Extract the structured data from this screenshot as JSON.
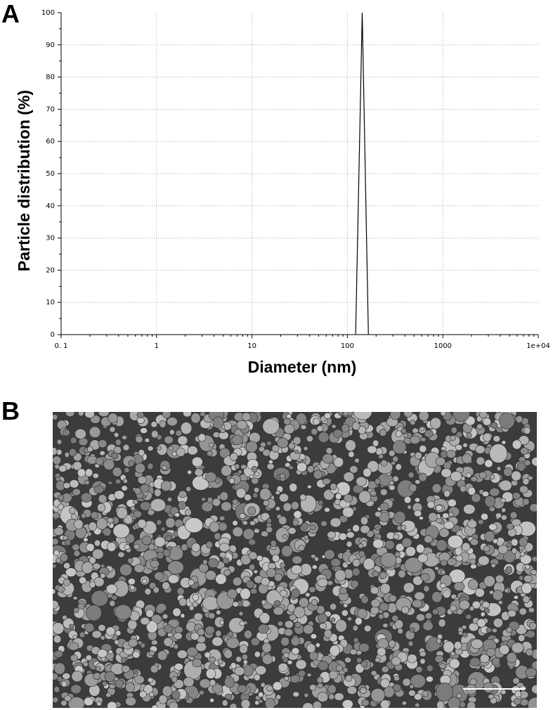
{
  "panel_labels": [
    "A",
    "B"
  ],
  "chart_data": {
    "type": "line",
    "xlabel": "Diameter (nm)",
    "ylabel": "Particle distribution (%)",
    "x": [
      122,
      143,
      166
    ],
    "series": [
      {
        "values": [
          0,
          100,
          0
        ],
        "color": "#000000"
      }
    ],
    "xscale": "log",
    "xlim": [
      0.1,
      10000
    ],
    "xticks": [
      {
        "value": 0.1,
        "label": "0. 1"
      },
      1,
      10,
      100,
      1000,
      {
        "value": 10000,
        "label": "1e+04"
      }
    ],
    "ylim": [
      0,
      100
    ],
    "yticks": [
      0,
      10,
      20,
      30,
      40,
      50,
      60,
      70,
      80,
      90,
      100
    ],
    "grid": true
  }
}
